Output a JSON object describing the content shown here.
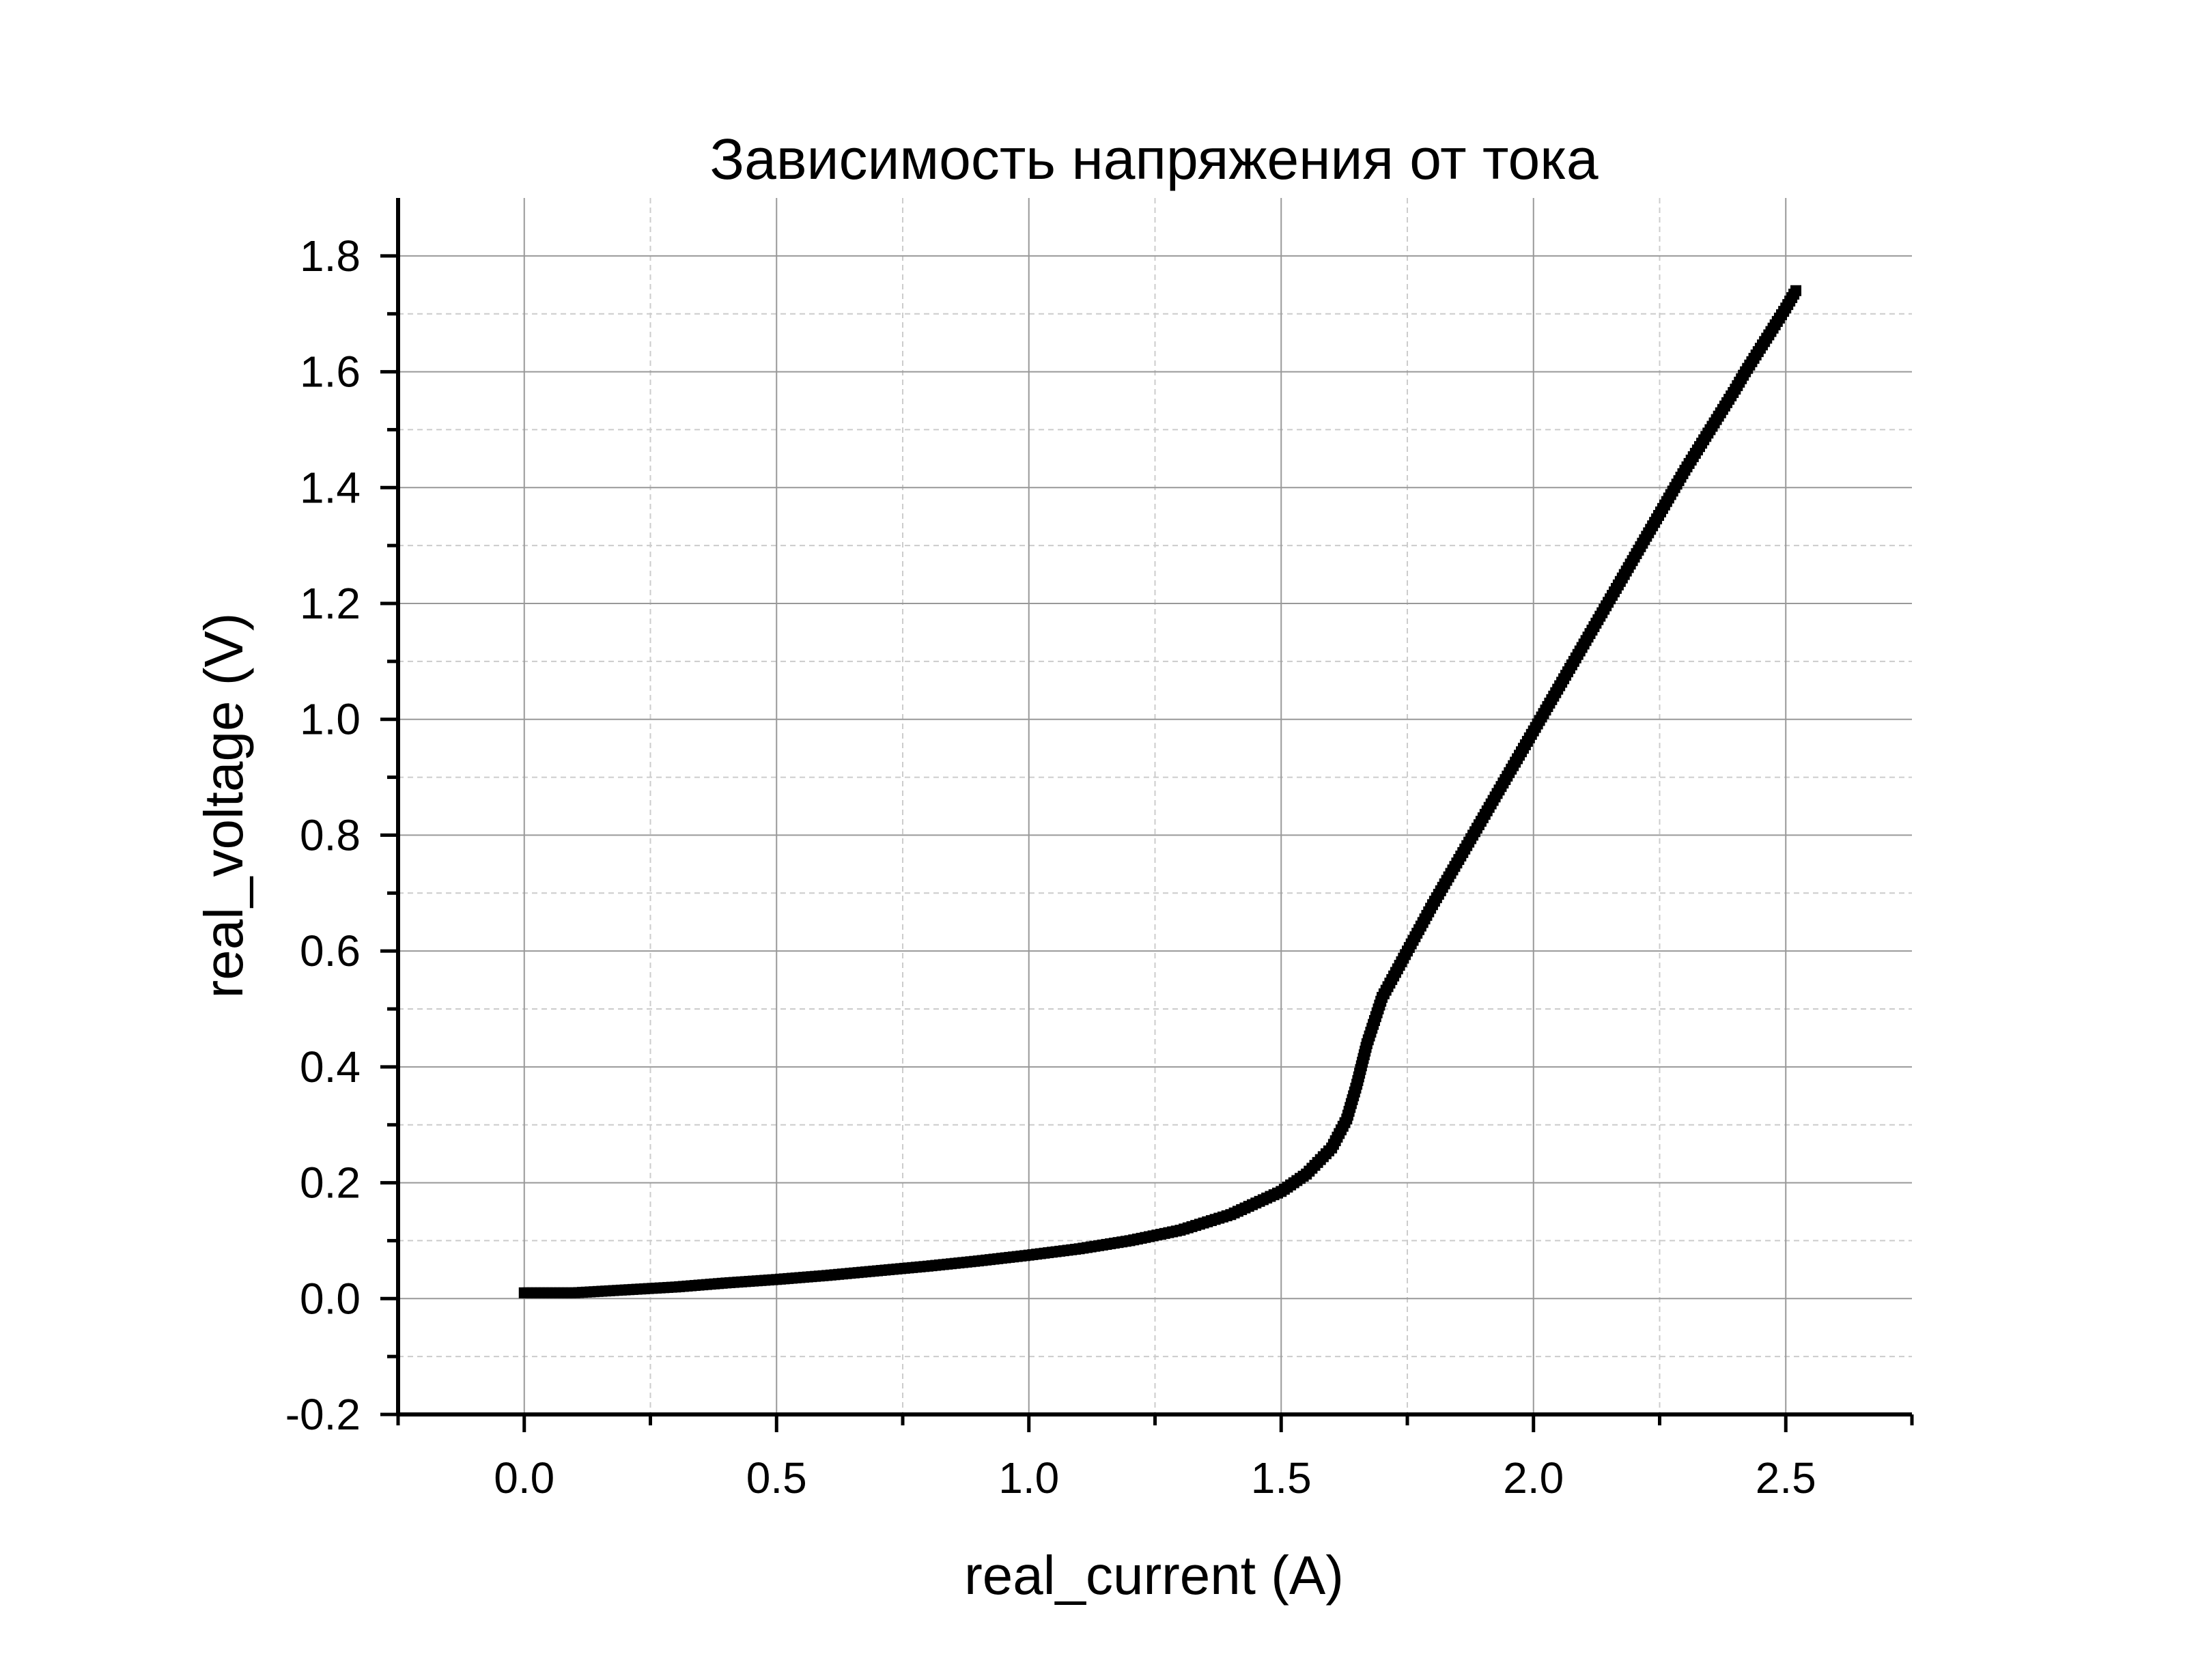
{
  "chart_data": {
    "type": "scatter",
    "title": "Зависимость напряжения от тока",
    "xlabel": "real_current (A)",
    "ylabel": "real_voltage (V)",
    "xlim": [
      -0.25,
      2.75
    ],
    "ylim": [
      -0.2,
      1.9
    ],
    "x_ticks": [
      "0.0",
      "0.5",
      "1.0",
      "1.5",
      "2.0",
      "2.5"
    ],
    "y_ticks": [
      "-0.2",
      "0.0",
      "0.2",
      "0.4",
      "0.6",
      "0.8",
      "1.0",
      "1.2",
      "1.4",
      "1.6",
      "1.8"
    ],
    "grid": true,
    "legend": "none",
    "colors": {
      "series": "#000000",
      "grid_major": "#999999",
      "grid_minor": "#cccccc",
      "axis": "#000000"
    },
    "series": [
      {
        "x": [
          0.0,
          0.1,
          0.2,
          0.3,
          0.4,
          0.5,
          0.6,
          0.7,
          0.8,
          0.9,
          1.0,
          1.1,
          1.2,
          1.3,
          1.4,
          1.5,
          1.55,
          1.6,
          1.63,
          1.65,
          1.67,
          1.7,
          1.75,
          1.8,
          1.9,
          2.0,
          2.1,
          2.2,
          2.3,
          2.4,
          2.42,
          2.5,
          2.52
        ],
        "y": [
          0.01,
          0.01,
          0.015,
          0.02,
          0.027,
          0.033,
          0.04,
          0.048,
          0.056,
          0.065,
          0.075,
          0.086,
          0.1,
          0.118,
          0.145,
          0.185,
          0.215,
          0.26,
          0.31,
          0.37,
          0.44,
          0.52,
          0.6,
          0.68,
          0.83,
          0.98,
          1.13,
          1.28,
          1.43,
          1.57,
          1.6,
          1.71,
          1.74
        ]
      }
    ]
  }
}
